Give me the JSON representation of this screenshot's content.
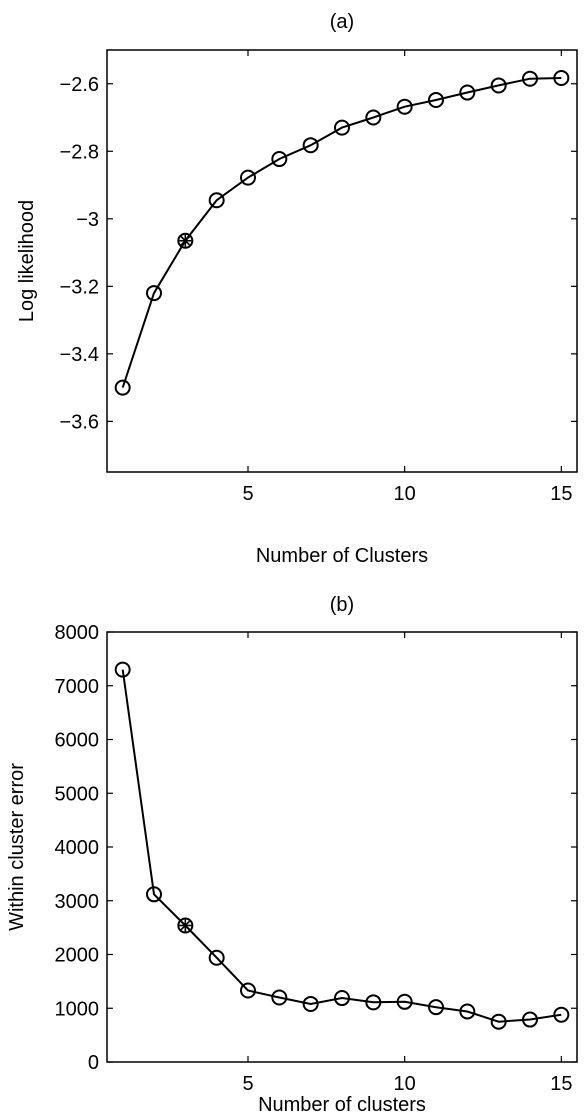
{
  "chart_data": [
    {
      "type": "line",
      "title": "(a)",
      "xlabel": "Number of Clusters",
      "ylabel": "Log likelihood",
      "xlim": [
        0.5,
        15.5
      ],
      "ylim": [
        -3.75,
        -2.5
      ],
      "xticks": [
        5,
        10,
        15
      ],
      "xtick_labels": [
        "5",
        "10",
        "15"
      ],
      "yticks": [
        -3.6,
        -3.4,
        -3.2,
        -3,
        -2.8,
        -2.6
      ],
      "ytick_labels": [
        "−3.6",
        "−3.4",
        "−3.2",
        "−3",
        "−2.8",
        "−2.6"
      ],
      "grid": false,
      "marker": "circle",
      "highlight_x": 3,
      "x": [
        1,
        2,
        3,
        4,
        5,
        6,
        7,
        8,
        9,
        10,
        11,
        12,
        13,
        14,
        15
      ],
      "values": [
        -3.5,
        -3.22,
        -3.065,
        -2.945,
        -2.878,
        -2.823,
        -2.782,
        -2.73,
        -2.7,
        -2.668,
        -2.648,
        -2.626,
        -2.605,
        -2.585,
        -2.583
      ]
    },
    {
      "type": "line",
      "title": "(b)",
      "xlabel": "Number of clusters",
      "ylabel": "Within cluster error",
      "xlim": [
        0.5,
        15.5
      ],
      "ylim": [
        0,
        8000
      ],
      "xticks": [
        5,
        10,
        15
      ],
      "xtick_labels": [
        "5",
        "10",
        "15"
      ],
      "yticks": [
        0,
        1000,
        2000,
        3000,
        4000,
        5000,
        6000,
        7000,
        8000
      ],
      "ytick_labels": [
        "0",
        "1000",
        "2000",
        "3000",
        "4000",
        "5000",
        "6000",
        "7000",
        "8000"
      ],
      "grid": false,
      "marker": "circle",
      "highlight_x": 3,
      "x": [
        1,
        2,
        3,
        4,
        5,
        6,
        7,
        8,
        9,
        10,
        11,
        12,
        13,
        14,
        15
      ],
      "values": [
        7300,
        3120,
        2540,
        1940,
        1330,
        1200,
        1080,
        1190,
        1110,
        1120,
        1020,
        940,
        750,
        790,
        880
      ]
    }
  ]
}
